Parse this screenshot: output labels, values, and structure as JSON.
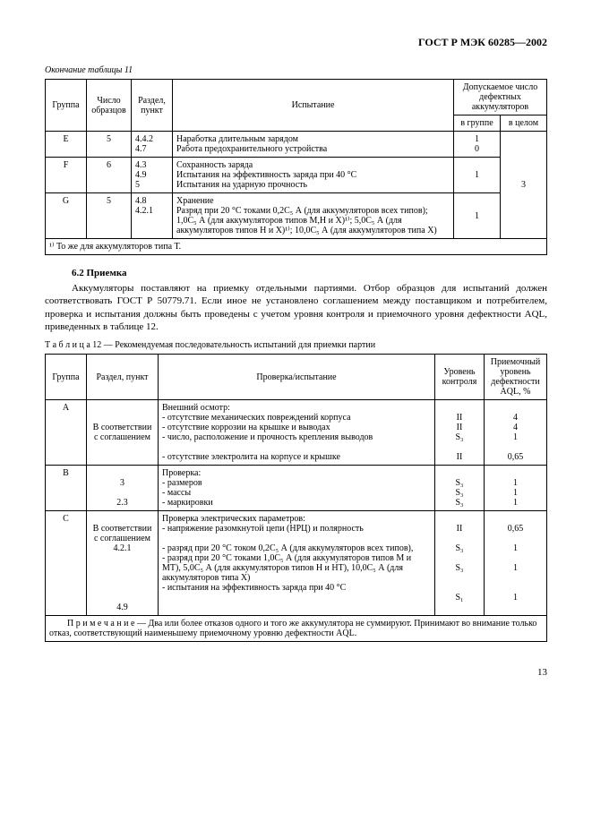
{
  "doc_id": "ГОСТ Р МЭК 60285—2002",
  "t11_caption": "Окончание таблицы 11",
  "t11": {
    "head": {
      "group": "Группа",
      "samples": "Число образцов",
      "section": "Раздел, пункт",
      "test": "Испытание",
      "defect": "Допускаемое число дефектных аккумуляторов",
      "in_group": "в группе",
      "in_total": "в целом"
    },
    "rows": {
      "e": {
        "group": "E",
        "samples": "5",
        "section": "4.4.2\n4.7",
        "test": "Наработка длительным зарядом\nРабота предохранительного устройства",
        "in_group": "1\n0",
        "total": ""
      },
      "f": {
        "group": "F",
        "samples": "6",
        "section": "4.3\n4.9\n5",
        "test": "Сохранность заряда\nИспытания на эффективность заряда при 40 °С\nИспытания на ударную прочность",
        "in_group": "1",
        "total": "3"
      },
      "g": {
        "group": "G",
        "samples": "5",
        "section": "4.8\n4.2.1",
        "test": "Хранение\nРазряд при 20 °С токами 0,2C₅ А (для аккумуляторов всех типов); 1,0C₅ А (для аккумуляторов типов М,Н и Х)¹⁾; 5,0C₅ А (для аккумуляторов типов Н и Х)¹⁾; 10,0C₅ А (для аккумуляторов типа Х)",
        "in_group": "1",
        "total": ""
      }
    },
    "footnote": "¹⁾ То же для аккумуляторов типа Т."
  },
  "section62_title": "6.2 Приемка",
  "section62_text": "Аккумуляторы поставляют на приемку отдельными партиями. Отбор образцов для испытаний должен соответствовать ГОСТ Р 50779.71. Если иное не установлено соглашением между поставщиком и потребителем, проверка и испытания должны быть проведены с учетом уровня контроля и приемочного уровня дефектности AQL, приведенных в таблице 12.",
  "t12_caption": "Т а б л и ц а 12 — Рекомендуемая последовательность испытаний для приемки партии",
  "t12": {
    "head": {
      "group": "Группа",
      "section": "Раздел, пункт",
      "test": "Проверка/испытание",
      "level": "Уровень контроля",
      "aql": "Приемочный уровень дефектности AQL, %"
    },
    "rows": {
      "a": {
        "group": "A",
        "section": "В соответствии с соглашением",
        "test": "Внешний осмотр:\n- отсутствие механических повреждений корпуса\n- отсутствие коррозии на крышке и выводах\n- число, расположение и прочность крепления выводов\n\n- отсутствие электролита на корпусе и крышке",
        "level": "\nII\nII\nS₃\n\nII",
        "aql": "\n4\n4\n1\n\n0,65"
      },
      "b": {
        "group": "B",
        "section": "\n3\n\n2.3",
        "test": "Проверка:\n- размеров\n- массы\n- маркировки",
        "level": "\nS₃\nS₃\nS₃",
        "aql": "\n1\n1\n1"
      },
      "c": {
        "group": "C",
        "section": "\nВ соответствии с соглашением\n4.2.1\n\n\n\n\n\n4.9",
        "test": "Проверка электрических параметров:\n- напряжение разомкнутой цепи (НРЦ) и полярность\n\n- разряд при 20 °С током 0,2C₅ А (для аккумуляторов всех типов),\n- разряд при 20 °С токами 1,0C₅ А (для аккумуляторов типов М и МТ), 5,0C₅ А (для аккумуляторов типов Н и НТ), 10,0C₅ А (для аккумуляторов типа Х)\n- испытания на эффективность заряда при 40 °С",
        "level": "\nII\n\nS₃\n\nS₃\n\n\nS₁",
        "aql": "\n0,65\n\n1\n\n1\n\n\n1"
      }
    },
    "note": "П р и м е ч а н и е — Два или более отказов одного и того же аккумулятора не суммируют. Принимают во внимание только отказ, соответствующий наименьшему приемочному уровню дефектности AQL."
  },
  "page_number": "13"
}
